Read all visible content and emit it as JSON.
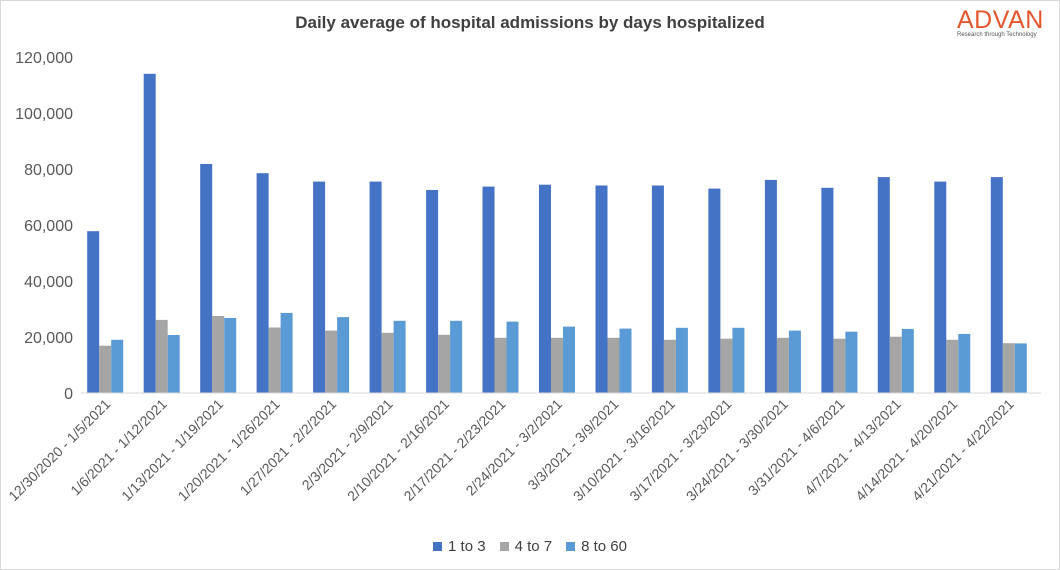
{
  "logo": {
    "name": "ADVAN",
    "tagline": "Research through Technology",
    "color": "#e4572e"
  },
  "chart_data": {
    "type": "bar",
    "title": "Daily average of hospital  admissions  by days hospitalized",
    "xlabel": "",
    "ylabel": "",
    "ylim": [
      0,
      120000
    ],
    "yticks": [
      0,
      20000,
      40000,
      60000,
      80000,
      100000,
      120000
    ],
    "ytick_labels": [
      "0",
      "20,000",
      "40,000",
      "60,000",
      "80,000",
      "100,000",
      "120,000"
    ],
    "grid": false,
    "legend_position": "bottom",
    "categories": [
      "12/30/2020 - 1/5/2021",
      "1/6/2021 - 1/12/2021",
      "1/13/2021 - 1/19/2021",
      "1/20/2021 - 1/26/2021",
      "1/27/2021 - 2/2/2021",
      "2/3/2021 - 2/9/2021",
      "2/10/2021 - 2/16/2021",
      "2/17/2021 - 2/23/2021",
      "2/24/2021 - 3/2/2021",
      "3/3/2021 - 3/9/2021",
      "3/10/2021 - 3/16/2021",
      "3/17/2021 - 3/23/2021",
      "3/24/2021 - 3/30/2021",
      "3/31/2021 - 4/6/2021",
      "4/7/2021 - 4/13/2021",
      "4/14/2021 - 4/20/2021",
      "4/21/2021 - 4/22/2021"
    ],
    "series": [
      {
        "name": "1 to 3",
        "color": "#4472c4",
        "values": [
          57800,
          114000,
          81800,
          78500,
          75500,
          75500,
          72500,
          73700,
          74400,
          74100,
          74100,
          73000,
          76100,
          73300,
          77100,
          75500,
          77100
        ]
      },
      {
        "name": "4 to 7",
        "color": "#a5a5a5",
        "values": [
          16900,
          26100,
          27500,
          23400,
          22300,
          21500,
          20800,
          19700,
          19700,
          19700,
          19000,
          19400,
          19700,
          19400,
          20100,
          19000,
          17800
        ]
      },
      {
        "name": "8 to 60",
        "color": "#5b9bd5",
        "values": [
          19000,
          20700,
          26800,
          28600,
          27100,
          25800,
          25800,
          25500,
          23700,
          23000,
          23300,
          23300,
          22300,
          21900,
          22900,
          21100,
          17700
        ]
      }
    ]
  }
}
